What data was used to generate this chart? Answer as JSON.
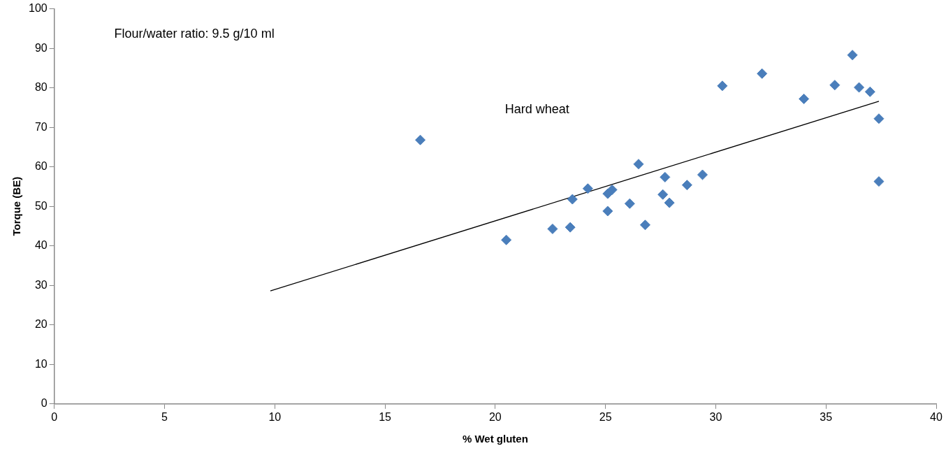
{
  "chart_data": {
    "type": "scatter",
    "xlabel": "% Wet gluten",
    "ylabel": "Torque (BE)",
    "annotations": [
      "Flour/water ratio: 9.5 g/10 ml",
      "Hard wheat"
    ],
    "series": [
      {
        "color": "#4a7ebb",
        "marker": "diamond",
        "x": [
          16.6,
          20.5,
          22.6,
          23.4,
          23.5,
          24.2,
          25.1,
          25.3,
          25.1,
          26.1,
          26.5,
          26.8,
          27.6,
          27.7,
          27.9,
          28.7,
          29.4,
          30.3,
          32.1,
          34.0,
          35.4,
          36.2,
          36.5,
          37.0,
          37.4,
          37.4
        ],
        "values": [
          66.8,
          41.5,
          44.3,
          44.7,
          51.8,
          54.5,
          53.2,
          54.2,
          48.8,
          50.7,
          60.7,
          45.3,
          53.0,
          57.4,
          50.9,
          55.4,
          58.0,
          80.5,
          83.6,
          77.2,
          80.7,
          88.3,
          80.1,
          79.0,
          72.2,
          56.3
        ]
      },
      {
        "type": "line",
        "color": "#000000",
        "marker": "none",
        "x": [
          9.8,
          37.4
        ],
        "values": [
          28.6,
          76.6
        ]
      }
    ],
    "xlim": [
      0,
      40
    ],
    "xticks": [
      0,
      5,
      10,
      15,
      20,
      25,
      30,
      35,
      40
    ],
    "ylim": [
      0,
      100
    ],
    "yticks": [
      0,
      10,
      20,
      30,
      40,
      50,
      60,
      70,
      80,
      90,
      100
    ],
    "grid": false,
    "legend": false
  }
}
